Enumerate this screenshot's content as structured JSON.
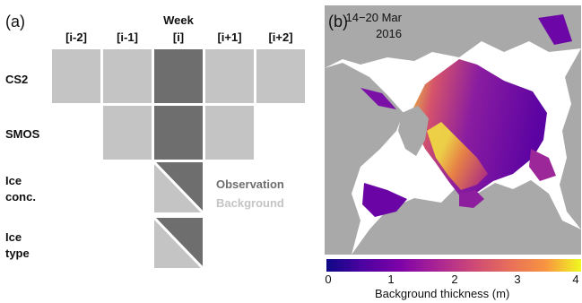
{
  "panel_a": {
    "label": "(a)",
    "week_title": "Week",
    "columns": [
      "[i-2]",
      "[i-1]",
      "[i]",
      "[i+1]",
      "[i+2]"
    ],
    "rows": [
      {
        "label": [
          "CS2"
        ]
      },
      {
        "label": [
          "SMOS"
        ]
      },
      {
        "label": [
          "Ice",
          "conc."
        ]
      },
      {
        "label": [
          "Ice",
          "type"
        ]
      }
    ],
    "legend": {
      "observation": "Observation",
      "background": "Background"
    },
    "colors": {
      "observation": "#6e6e6e",
      "background": "#c4c4c4"
    }
  },
  "panel_b": {
    "label": "(b)",
    "date_line1": "14−20 Mar",
    "date_line2": "2016",
    "colorbar": {
      "ticks": [
        "0",
        "1",
        "2",
        "3",
        "4"
      ],
      "label": "Background thickness (m)",
      "range": [
        0,
        4
      ],
      "colormap": "plasma"
    },
    "colors": {
      "land": "#a9a9a9",
      "ocean": "#ffffff"
    }
  }
}
